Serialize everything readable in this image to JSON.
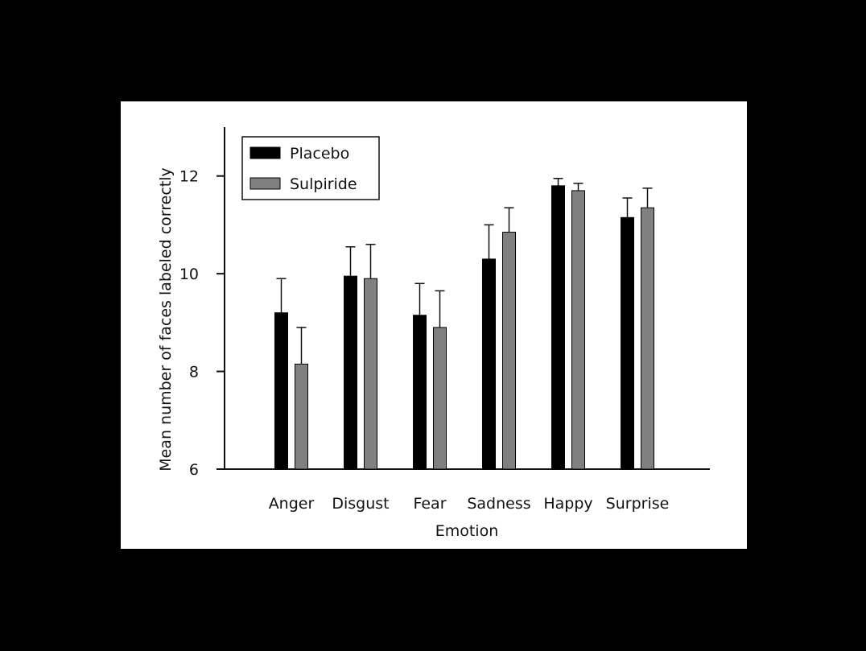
{
  "chart_data": {
    "type": "bar",
    "title": "",
    "xlabel": "Emotion",
    "ylabel": "Mean number of faces labeled correctly",
    "ylim": [
      6,
      13
    ],
    "yticks": [
      6,
      8,
      10,
      12
    ],
    "categories": [
      "Anger",
      "Disgust",
      "Fear",
      "Sadness",
      "Happy",
      "Surprise"
    ],
    "series": [
      {
        "name": "Placebo",
        "color": "#000000",
        "values": [
          9.2,
          9.95,
          9.15,
          10.3,
          11.8,
          11.15
        ],
        "error": [
          0.7,
          0.6,
          0.65,
          0.7,
          0.15,
          0.4
        ]
      },
      {
        "name": "Sulpiride",
        "color": "#808080",
        "values": [
          8.15,
          9.9,
          8.9,
          10.85,
          11.7,
          11.35
        ],
        "error": [
          0.75,
          0.7,
          0.75,
          0.5,
          0.15,
          0.4
        ]
      }
    ],
    "error_bars": "upper",
    "legend_position": "top-left",
    "grid": false
  }
}
